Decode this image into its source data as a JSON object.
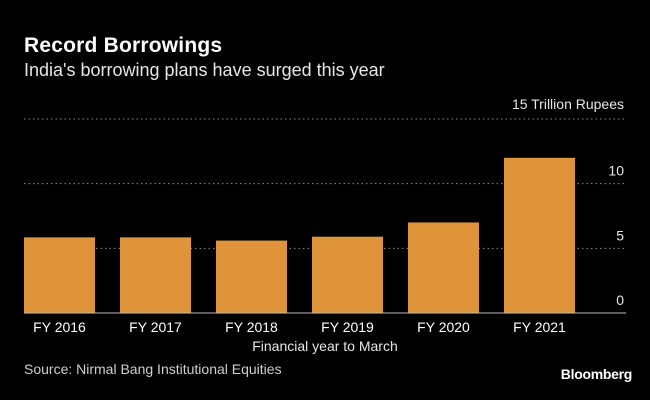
{
  "header": {
    "title": "Record Borrowings",
    "subtitle": "India's borrowing plans have surged this year"
  },
  "chart_data": {
    "type": "bar",
    "categories": [
      "FY 2016",
      "FY 2017",
      "FY 2018",
      "FY 2019",
      "FY 2020",
      "FY 2021"
    ],
    "values": [
      5.85,
      5.85,
      5.6,
      5.9,
      7.0,
      12.0
    ],
    "unit_label": "15 Trillion Rupees",
    "xlabel": "Financial year to March",
    "yticks": [
      0,
      5,
      10,
      15
    ],
    "ylim": [
      0,
      15
    ],
    "grid": true,
    "bar_color": "#E0943A"
  },
  "footer": {
    "source": "Source: Nirmal Bang Institutional Equities",
    "brand": "Bloomberg"
  }
}
